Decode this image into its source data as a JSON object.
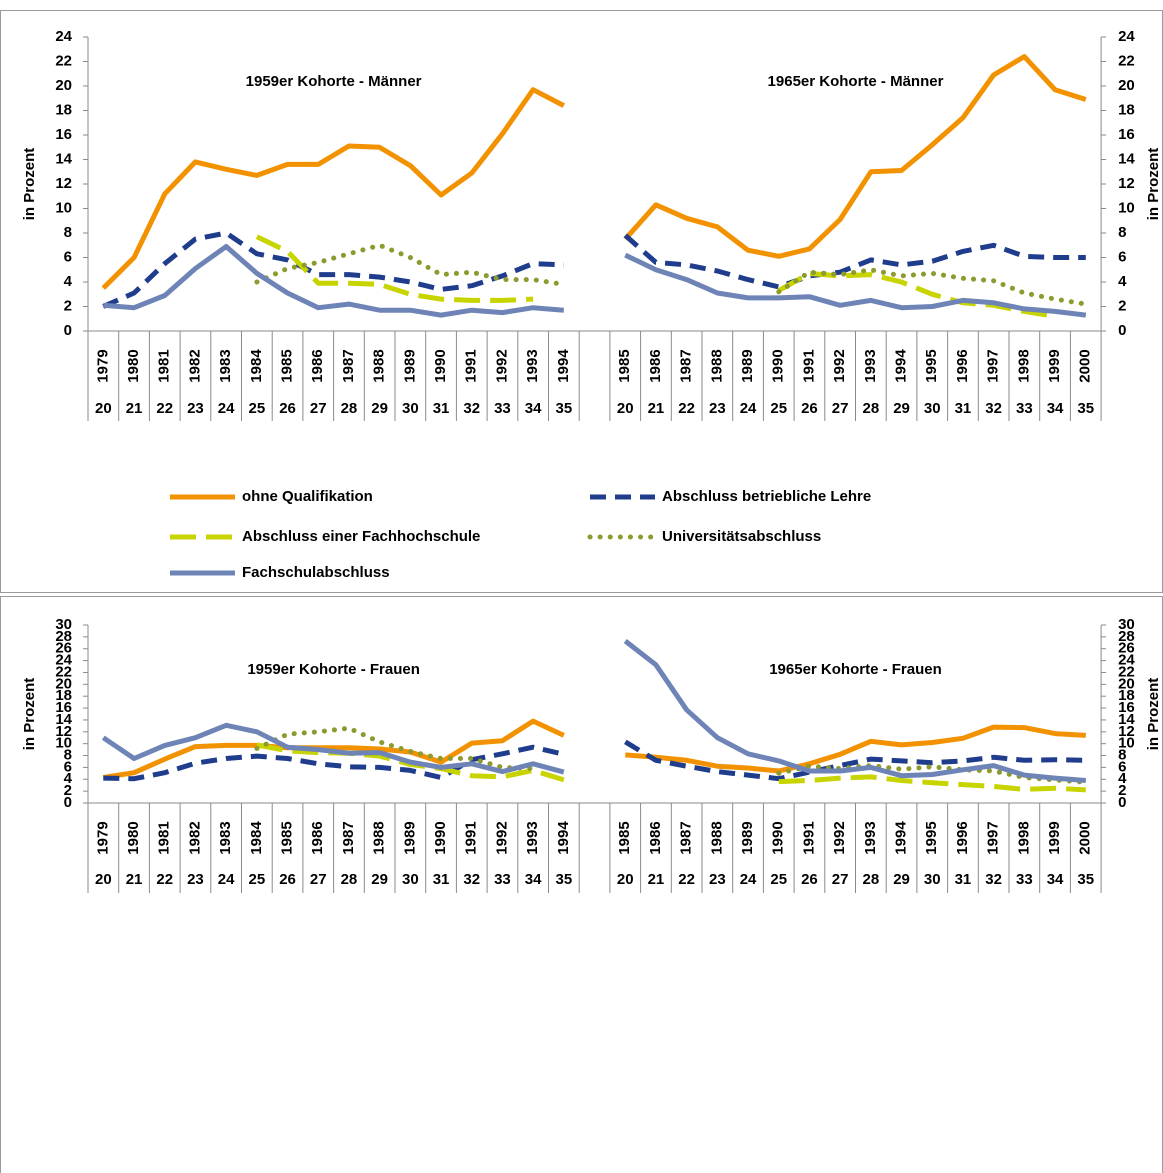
{
  "chart_data": [
    {
      "type": "line",
      "annotations": [
        "1959er Kohorte - Männer",
        "1965er Kohorte - Männer"
      ],
      "ylabel": "in Prozent",
      "y2label": "in Prozent",
      "categories": [
        "1979",
        "1980",
        "1981",
        "1982",
        "1983",
        "1984",
        "1985",
        "1986",
        "1987",
        "1988",
        "1989",
        "1990",
        "1991",
        "1992",
        "1993",
        "1994",
        null,
        "1985",
        "1986",
        "1987",
        "1988",
        "1989",
        "1990",
        "1991",
        "1992",
        "1993",
        "1994",
        "1995",
        "1996",
        "1997",
        "1998",
        "1999",
        "2000"
      ],
      "ages": [
        "20",
        "21",
        "22",
        "23",
        "24",
        "25",
        "26",
        "27",
        "28",
        "29",
        "30",
        "31",
        "32",
        "33",
        "34",
        "35",
        null,
        "20",
        "21",
        "22",
        "23",
        "24",
        "25",
        "26",
        "27",
        "28",
        "29",
        "30",
        "31",
        "32",
        "33",
        "34",
        "35"
      ],
      "ylim": [
        0,
        24
      ],
      "yticks": [
        0,
        2,
        4,
        6,
        8,
        10,
        12,
        14,
        16,
        18,
        20,
        22,
        24
      ],
      "y2lim": [
        0,
        24
      ],
      "y2ticks": [
        0,
        2,
        4,
        6,
        8,
        10,
        12,
        14,
        16,
        18,
        20,
        22,
        24
      ],
      "legend": "bottom",
      "series": [
        {
          "name": "ohne Qualifikation",
          "color": "#f39200",
          "style": "solid",
          "values": [
            3.5,
            6.0,
            11.2,
            13.8,
            13.2,
            12.7,
            13.6,
            13.6,
            15.1,
            15.0,
            13.5,
            11.1,
            12.9,
            16.1,
            19.7,
            18.4,
            null,
            7.5,
            10.3,
            9.2,
            8.5,
            6.6,
            6.1,
            6.7,
            9.1,
            13.0,
            13.1,
            15.2,
            17.4,
            20.9,
            22.4,
            19.7,
            18.9
          ]
        },
        {
          "name": "Abschluss betriebliche Lehre",
          "color": "#1f3d8c",
          "style": "dashed",
          "values": [
            2.0,
            3.1,
            5.5,
            7.5,
            8.0,
            6.3,
            5.8,
            4.6,
            4.6,
            4.4,
            4.0,
            3.4,
            3.7,
            4.5,
            5.5,
            5.4,
            null,
            7.8,
            5.6,
            5.4,
            4.9,
            4.2,
            3.6,
            4.5,
            4.8,
            5.8,
            5.4,
            5.7,
            6.5,
            7.0,
            6.1,
            6.0,
            6.0
          ]
        },
        {
          "name": "Abschluss einer Fachhochschule",
          "color": "#c8d400",
          "style": "longdash",
          "values": [
            null,
            null,
            null,
            null,
            null,
            7.7,
            6.5,
            3.9,
            3.9,
            3.8,
            3.0,
            2.6,
            2.5,
            2.5,
            2.6,
            null,
            null,
            null,
            null,
            null,
            null,
            null,
            3.3,
            4.7,
            4.5,
            4.6,
            4.0,
            3.0,
            2.3,
            2.1,
            1.6,
            1.2,
            null
          ]
        },
        {
          "name": "Universitätsabschluss",
          "color": "#8c9a2e",
          "style": "dotted",
          "values": [
            null,
            null,
            null,
            null,
            null,
            4.0,
            5.1,
            5.6,
            6.3,
            7.0,
            6.0,
            4.6,
            4.8,
            4.2,
            4.2,
            3.8,
            null,
            null,
            null,
            null,
            null,
            null,
            3.2,
            4.8,
            4.6,
            5.0,
            4.5,
            4.7,
            4.3,
            4.1,
            3.1,
            2.6,
            2.2
          ]
        },
        {
          "name": "Fachschulabschluss",
          "color": "#6f84b6",
          "style": "solid",
          "values": [
            2.1,
            1.9,
            2.9,
            5.1,
            6.9,
            4.7,
            3.1,
            1.9,
            2.2,
            1.7,
            1.7,
            1.3,
            1.7,
            1.5,
            1.9,
            1.7,
            null,
            6.2,
            5.0,
            4.2,
            3.1,
            2.7,
            2.7,
            2.8,
            2.1,
            2.5,
            1.9,
            2.0,
            2.5,
            2.3,
            1.8,
            1.6,
            1.3
          ]
        }
      ]
    },
    {
      "type": "line",
      "annotations": [
        "1959er Kohorte - Frauen",
        "1965er Kohorte - Frauen"
      ],
      "ylabel": "in Prozent",
      "y2label": "in Prozent",
      "categories": [
        "1979",
        "1980",
        "1981",
        "1982",
        "1983",
        "1984",
        "1985",
        "1986",
        "1987",
        "1988",
        "1989",
        "1990",
        "1991",
        "1992",
        "1993",
        "1994",
        null,
        "1985",
        "1986",
        "1987",
        "1988",
        "1989",
        "1990",
        "1991",
        "1992",
        "1993",
        "1994",
        "1995",
        "1996",
        "1997",
        "1998",
        "1999",
        "2000"
      ],
      "ages": [
        "20",
        "21",
        "22",
        "23",
        "24",
        "25",
        "26",
        "27",
        "28",
        "29",
        "30",
        "31",
        "32",
        "33",
        "34",
        "35",
        null,
        "20",
        "21",
        "22",
        "23",
        "24",
        "25",
        "26",
        "27",
        "28",
        "29",
        "30",
        "31",
        "32",
        "33",
        "34",
        "35"
      ],
      "ylim": [
        0,
        30
      ],
      "yticks": [
        0,
        2,
        4,
        6,
        8,
        10,
        12,
        14,
        16,
        18,
        20,
        22,
        24,
        26,
        28,
        30
      ],
      "y2lim": [
        0,
        30
      ],
      "y2ticks": [
        0,
        2,
        4,
        6,
        8,
        10,
        12,
        14,
        16,
        18,
        20,
        22,
        24,
        26,
        28,
        30
      ],
      "series": [
        {
          "color": "#f39200",
          "style": "solid",
          "values": [
            4.3,
            5.1,
            7.4,
            9.5,
            9.7,
            9.7,
            9.3,
            9.3,
            9.3,
            9.1,
            8.6,
            6.9,
            10.1,
            10.5,
            13.8,
            11.4,
            null,
            8.1,
            7.7,
            7.2,
            6.2,
            5.9,
            5.4,
            6.6,
            8.2,
            10.4,
            9.8,
            10.2,
            10.9,
            12.8,
            12.7,
            11.7,
            11.4
          ]
        },
        {
          "color": "#1f3d8c",
          "style": "dashed",
          "values": [
            4.2,
            4.1,
            5.1,
            6.7,
            7.5,
            7.9,
            7.5,
            6.6,
            6.1,
            6.0,
            5.5,
            4.3,
            7.3,
            8.3,
            9.4,
            8.2,
            null,
            10.3,
            7.2,
            6.2,
            5.3,
            4.7,
            4.1,
            5.2,
            6.3,
            7.4,
            7.1,
            6.8,
            7.1,
            7.7,
            7.2,
            7.3,
            7.2
          ]
        },
        {
          "color": "#c8d400",
          "style": "longdash",
          "values": [
            null,
            null,
            null,
            null,
            null,
            9.8,
            8.8,
            8.5,
            8.4,
            7.9,
            6.5,
            5.8,
            4.6,
            4.4,
            5.5,
            3.9,
            null,
            null,
            null,
            null,
            null,
            null,
            3.6,
            3.8,
            4.2,
            4.4,
            3.8,
            3.4,
            3.1,
            2.8,
            2.3,
            2.5,
            2.2
          ]
        },
        {
          "color": "#8c9a2e",
          "style": "dotted",
          "values": [
            null,
            null,
            null,
            null,
            null,
            9.2,
            11.6,
            12.0,
            12.6,
            10.3,
            8.7,
            7.5,
            7.5,
            6.0,
            5.8,
            null,
            null,
            null,
            null,
            null,
            null,
            null,
            5.0,
            6.2,
            5.8,
            6.3,
            5.7,
            6.1,
            5.6,
            5.4,
            4.3,
            3.9,
            3.5
          ]
        },
        {
          "color": "#6f84b6",
          "style": "solid",
          "values": [
            11.0,
            7.5,
            9.7,
            11.0,
            13.1,
            12.0,
            9.4,
            9.0,
            8.4,
            8.5,
            6.9,
            6.0,
            6.6,
            5.3,
            6.6,
            5.2,
            null,
            27.3,
            23.3,
            15.7,
            11.0,
            8.3,
            7.1,
            5.4,
            5.4,
            6.0,
            4.6,
            4.8,
            5.6,
            6.3,
            4.7,
            4.2,
            3.8
          ]
        }
      ]
    }
  ]
}
